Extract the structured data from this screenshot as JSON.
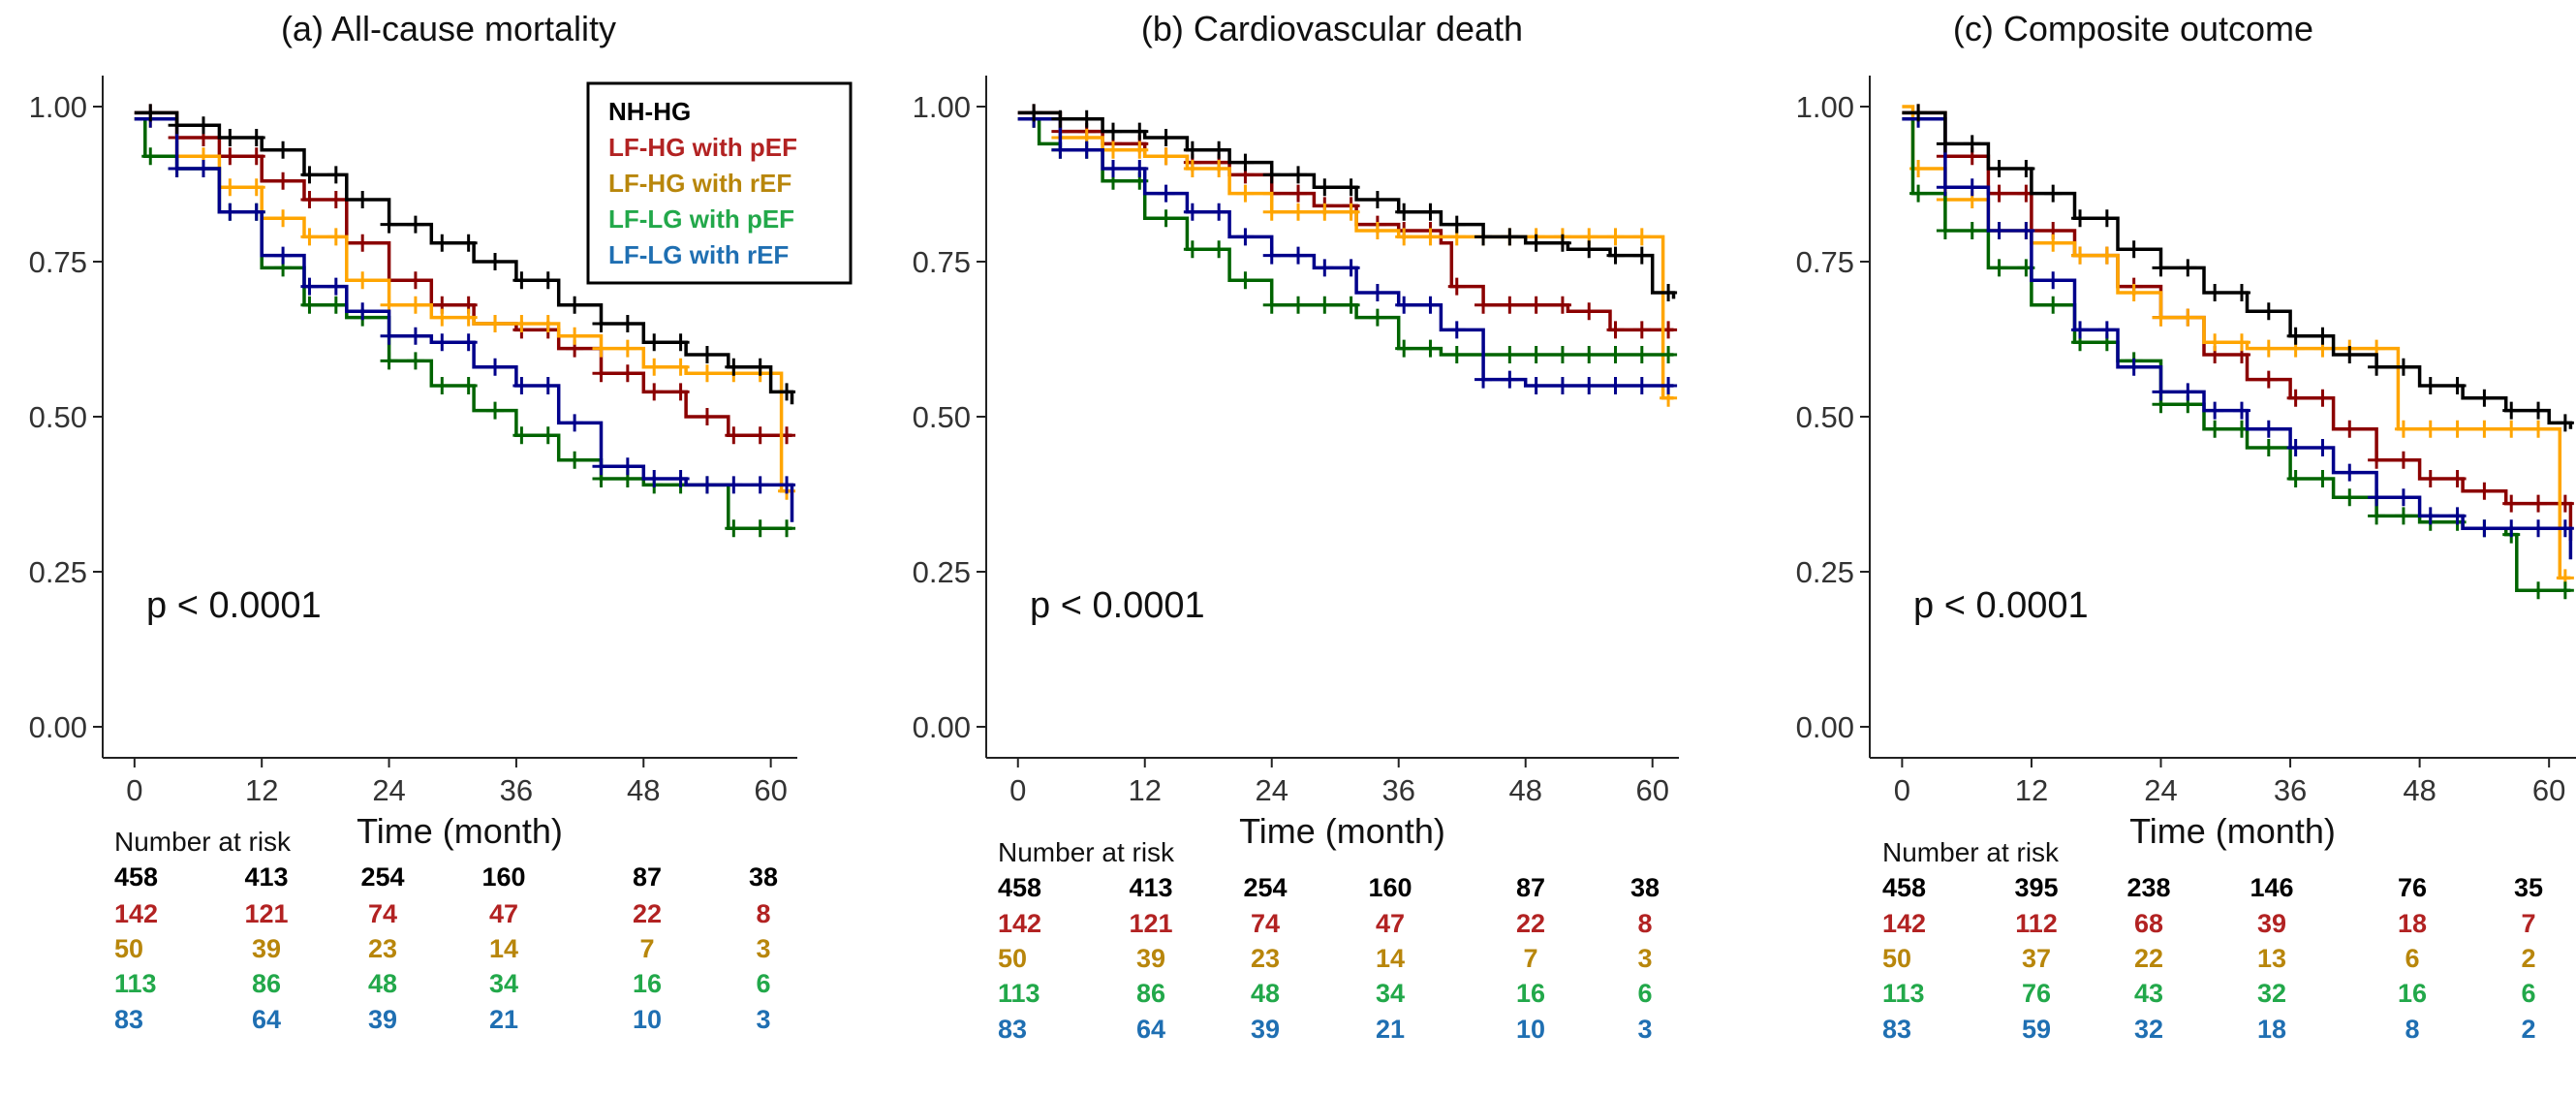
{
  "colors": {
    "NH-HG": "#000000",
    "LF-HG with pEF": "#8b0000",
    "LF-HG with rEF": "#ffa500",
    "LF-LG with pEF": "#006400",
    "LF-LG with rEF": "#00008b"
  },
  "label_colors": {
    "NH-HG": "#000000",
    "LF-HG with pEF": "#b22222",
    "LF-HG with rEF": "#b8860b",
    "LF-LG with pEF": "#22a84a",
    "LF-LG with rEF": "#1f6fb2"
  },
  "legend": {
    "items": [
      "NH-HG",
      "LF-HG with pEF",
      "LF-HG with rEF",
      "LF-LG with pEF",
      "LF-LG with rEF"
    ]
  },
  "risk_title": "Number at risk",
  "chart_data": [
    {
      "type": "line",
      "title": "(a) All-cause mortality",
      "xlabel": "Time (month)",
      "ylabel": "",
      "xlim": [
        -3,
        62.5
      ],
      "ylim": [
        -0.05,
        1.05
      ],
      "xticks": [
        "0",
        "12",
        "24",
        "36",
        "48",
        "60"
      ],
      "yticks": [
        "0.00",
        "0.25",
        "0.50",
        "0.75",
        "1.00"
      ],
      "annotation": "p < 0.0001",
      "series": [
        {
          "name": "NH-HG",
          "x": [
            0,
            4,
            8,
            12,
            16,
            20,
            24,
            28,
            32,
            36,
            40,
            44,
            48,
            52,
            56,
            60,
            62
          ],
          "y": [
            0.99,
            0.97,
            0.95,
            0.93,
            0.89,
            0.85,
            0.81,
            0.78,
            0.75,
            0.72,
            0.68,
            0.65,
            0.62,
            0.6,
            0.58,
            0.54,
            0.52
          ]
        },
        {
          "name": "LF-HG with pEF",
          "x": [
            0,
            4,
            8,
            12,
            16,
            20,
            24,
            28,
            32,
            36,
            40,
            44,
            48,
            52,
            56,
            60,
            62
          ],
          "y": [
            0.99,
            0.95,
            0.92,
            0.88,
            0.85,
            0.78,
            0.72,
            0.68,
            0.65,
            0.64,
            0.61,
            0.57,
            0.54,
            0.5,
            0.47,
            0.47,
            0.47
          ]
        },
        {
          "name": "LF-HG with rEF",
          "x": [
            0,
            4,
            8,
            12,
            16,
            20,
            24,
            28,
            32,
            36,
            40,
            44,
            48,
            52,
            56,
            60,
            61,
            62
          ],
          "y": [
            0.98,
            0.92,
            0.87,
            0.82,
            0.79,
            0.72,
            0.68,
            0.66,
            0.65,
            0.65,
            0.63,
            0.61,
            0.58,
            0.57,
            0.57,
            0.57,
            0.38,
            0.38
          ]
        },
        {
          "name": "LF-LG with pEF",
          "x": [
            0,
            1,
            4,
            8,
            12,
            16,
            20,
            24,
            28,
            32,
            36,
            40,
            44,
            48,
            52,
            56,
            60,
            62
          ],
          "y": [
            0.98,
            0.92,
            0.9,
            0.83,
            0.74,
            0.68,
            0.66,
            0.59,
            0.55,
            0.51,
            0.47,
            0.43,
            0.4,
            0.39,
            0.39,
            0.32,
            0.32,
            0.32
          ]
        },
        {
          "name": "LF-LG with rEF",
          "x": [
            0,
            4,
            8,
            12,
            16,
            20,
            24,
            28,
            32,
            36,
            40,
            44,
            48,
            52,
            56,
            60,
            62
          ],
          "y": [
            0.98,
            0.9,
            0.83,
            0.76,
            0.71,
            0.67,
            0.63,
            0.62,
            0.58,
            0.55,
            0.49,
            0.42,
            0.4,
            0.39,
            0.39,
            0.39,
            0.33
          ]
        }
      ],
      "risk_table": {
        "NH-HG": [
          "458",
          "413",
          "254",
          "160",
          "87",
          "38"
        ],
        "LF-HG with pEF": [
          "142",
          "121",
          "74",
          "47",
          "22",
          "8"
        ],
        "LF-HG with rEF": [
          "50",
          "39",
          "23",
          "14",
          "7",
          "3"
        ],
        "LF-LG with pEF": [
          "113",
          "86",
          "48",
          "34",
          "16",
          "6"
        ],
        "LF-LG with rEF": [
          "83",
          "64",
          "39",
          "21",
          "10",
          "3"
        ]
      }
    },
    {
      "type": "line",
      "title": "(b) Cardiovascular death",
      "xlabel": "Time (month)",
      "ylabel": "",
      "xlim": [
        -3,
        62.5
      ],
      "ylim": [
        -0.05,
        1.05
      ],
      "xticks": [
        "0",
        "12",
        "24",
        "36",
        "48",
        "60"
      ],
      "yticks": [
        "0.00",
        "0.25",
        "0.50",
        "0.75",
        "1.00"
      ],
      "annotation": "p < 0.0001",
      "series": [
        {
          "name": "NH-HG",
          "x": [
            0,
            4,
            8,
            12,
            16,
            20,
            24,
            28,
            32,
            36,
            40,
            44,
            48,
            52,
            56,
            60,
            62
          ],
          "y": [
            0.99,
            0.98,
            0.96,
            0.95,
            0.93,
            0.91,
            0.89,
            0.87,
            0.85,
            0.83,
            0.81,
            0.79,
            0.78,
            0.77,
            0.76,
            0.7,
            0.69
          ]
        },
        {
          "name": "LF-HG with pEF",
          "x": [
            0,
            4,
            8,
            12,
            16,
            20,
            24,
            28,
            32,
            36,
            40,
            41,
            44,
            48,
            52,
            56,
            60,
            62
          ],
          "y": [
            0.99,
            0.96,
            0.94,
            0.92,
            0.91,
            0.89,
            0.86,
            0.84,
            0.81,
            0.8,
            0.78,
            0.71,
            0.68,
            0.68,
            0.67,
            0.64,
            0.64,
            0.64
          ]
        },
        {
          "name": "LF-HG with rEF",
          "x": [
            0,
            4,
            8,
            12,
            16,
            20,
            24,
            28,
            32,
            36,
            40,
            44,
            48,
            52,
            56,
            60,
            61,
            62
          ],
          "y": [
            0.98,
            0.95,
            0.93,
            0.92,
            0.9,
            0.86,
            0.83,
            0.83,
            0.8,
            0.79,
            0.79,
            0.79,
            0.79,
            0.79,
            0.79,
            0.79,
            0.53,
            0.53
          ]
        },
        {
          "name": "LF-LG with pEF",
          "x": [
            0,
            2,
            4,
            8,
            12,
            16,
            20,
            24,
            28,
            32,
            36,
            40,
            44,
            48,
            52,
            56,
            60,
            62
          ],
          "y": [
            0.98,
            0.94,
            0.93,
            0.88,
            0.82,
            0.77,
            0.72,
            0.68,
            0.68,
            0.66,
            0.61,
            0.6,
            0.6,
            0.6,
            0.6,
            0.6,
            0.6,
            0.6
          ]
        },
        {
          "name": "LF-LG with rEF",
          "x": [
            0,
            4,
            8,
            12,
            16,
            20,
            24,
            28,
            32,
            36,
            40,
            44,
            48,
            52,
            56,
            60,
            62
          ],
          "y": [
            0.98,
            0.93,
            0.9,
            0.86,
            0.83,
            0.79,
            0.76,
            0.74,
            0.7,
            0.68,
            0.64,
            0.56,
            0.55,
            0.55,
            0.55,
            0.55,
            0.55
          ]
        }
      ],
      "risk_table": {
        "NH-HG": [
          "458",
          "413",
          "254",
          "160",
          "87",
          "38"
        ],
        "LF-HG with pEF": [
          "142",
          "121",
          "74",
          "47",
          "22",
          "8"
        ],
        "LF-HG with rEF": [
          "50",
          "39",
          "23",
          "14",
          "7",
          "3"
        ],
        "LF-LG with pEF": [
          "113",
          "86",
          "48",
          "34",
          "16",
          "6"
        ],
        "LF-LG with rEF": [
          "83",
          "64",
          "39",
          "21",
          "10",
          "3"
        ]
      }
    },
    {
      "type": "line",
      "title": "(c) Composite outcome",
      "xlabel": "Time (month)",
      "ylabel": "",
      "xlim": [
        -3,
        62.5
      ],
      "ylim": [
        -0.05,
        1.05
      ],
      "xticks": [
        "0",
        "12",
        "24",
        "36",
        "48",
        "60"
      ],
      "yticks": [
        "0.00",
        "0.25",
        "0.50",
        "0.75",
        "1.00"
      ],
      "annotation": "p < 0.0001",
      "series": [
        {
          "name": "NH-HG",
          "x": [
            0,
            4,
            8,
            12,
            16,
            20,
            24,
            28,
            32,
            36,
            40,
            44,
            48,
            52,
            56,
            60,
            62
          ],
          "y": [
            0.99,
            0.94,
            0.9,
            0.86,
            0.82,
            0.77,
            0.74,
            0.7,
            0.67,
            0.63,
            0.6,
            0.58,
            0.55,
            0.53,
            0.51,
            0.49,
            0.48
          ]
        },
        {
          "name": "LF-HG with pEF",
          "x": [
            0,
            4,
            8,
            12,
            16,
            20,
            24,
            28,
            32,
            36,
            40,
            44,
            48,
            52,
            56,
            60,
            62
          ],
          "y": [
            0.99,
            0.92,
            0.86,
            0.8,
            0.76,
            0.71,
            0.66,
            0.6,
            0.56,
            0.53,
            0.48,
            0.43,
            0.4,
            0.38,
            0.36,
            0.36,
            0.3
          ]
        },
        {
          "name": "LF-HG with rEF",
          "x": [
            0,
            1,
            4,
            8,
            12,
            16,
            20,
            24,
            28,
            32,
            36,
            40,
            44,
            46,
            48,
            52,
            56,
            60,
            61,
            62
          ],
          "y": [
            1.0,
            0.9,
            0.85,
            0.8,
            0.78,
            0.76,
            0.7,
            0.66,
            0.62,
            0.61,
            0.61,
            0.61,
            0.61,
            0.48,
            0.48,
            0.48,
            0.48,
            0.48,
            0.24,
            0.24
          ]
        },
        {
          "name": "LF-LG with pEF",
          "x": [
            0,
            1,
            4,
            8,
            12,
            16,
            20,
            24,
            28,
            32,
            36,
            40,
            44,
            48,
            52,
            56,
            57,
            60,
            62
          ],
          "y": [
            0.98,
            0.86,
            0.8,
            0.74,
            0.68,
            0.62,
            0.59,
            0.52,
            0.48,
            0.45,
            0.4,
            0.37,
            0.34,
            0.33,
            0.32,
            0.31,
            0.22,
            0.22,
            0.22
          ]
        },
        {
          "name": "LF-LG with rEF",
          "x": [
            0,
            4,
            8,
            12,
            16,
            20,
            24,
            28,
            32,
            36,
            40,
            44,
            48,
            52,
            56,
            60,
            62
          ],
          "y": [
            0.98,
            0.87,
            0.8,
            0.72,
            0.64,
            0.58,
            0.54,
            0.51,
            0.48,
            0.45,
            0.41,
            0.37,
            0.34,
            0.32,
            0.32,
            0.32,
            0.27
          ]
        }
      ],
      "risk_table": {
        "NH-HG": [
          "458",
          "395",
          "238",
          "146",
          "76",
          "35"
        ],
        "LF-HG with pEF": [
          "142",
          "112",
          "68",
          "39",
          "18",
          "7"
        ],
        "LF-HG with rEF": [
          "50",
          "37",
          "22",
          "13",
          "6",
          "2"
        ],
        "LF-LG with pEF": [
          "113",
          "76",
          "43",
          "32",
          "16",
          "6"
        ],
        "LF-LG with rEF": [
          "83",
          "59",
          "32",
          "18",
          "8",
          "2"
        ]
      }
    }
  ]
}
